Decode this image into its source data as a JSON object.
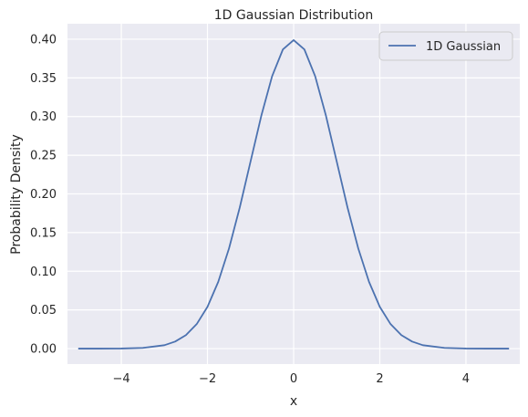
{
  "chart_data": {
    "type": "line",
    "title": "1D Gaussian Distribution",
    "xlabel": "x",
    "ylabel": "Probability Density",
    "xlim": [
      -5.25,
      5.25
    ],
    "ylim": [
      -0.02,
      0.42
    ],
    "xticks": [
      -4,
      -2,
      0,
      2,
      4
    ],
    "xtick_labels": [
      "−4",
      "−2",
      "0",
      "2",
      "4"
    ],
    "yticks": [
      0.0,
      0.05,
      0.1,
      0.15,
      0.2,
      0.25,
      0.3,
      0.35,
      0.4
    ],
    "ytick_labels": [
      "0.00",
      "0.05",
      "0.10",
      "0.15",
      "0.20",
      "0.25",
      "0.30",
      "0.35",
      "0.40"
    ],
    "grid": true,
    "legend_position": "top-right",
    "colors": {
      "plot_bg": "#EAEAF2",
      "line": "#4C72B0",
      "grid": "#FFFFFF"
    },
    "series": [
      {
        "name": "1D Gaussian",
        "x": [
          -5.0,
          -4.5,
          -4.0,
          -3.5,
          -3.0,
          -2.75,
          -2.5,
          -2.25,
          -2.0,
          -1.75,
          -1.5,
          -1.25,
          -1.0,
          -0.75,
          -0.5,
          -0.25,
          0.0,
          0.25,
          0.5,
          0.75,
          1.0,
          1.25,
          1.5,
          1.75,
          2.0,
          2.25,
          2.5,
          2.75,
          3.0,
          3.5,
          4.0,
          4.5,
          5.0
        ],
        "y": [
          0.0,
          0.0,
          0.0001,
          0.0009,
          0.0044,
          0.0091,
          0.0175,
          0.0317,
          0.054,
          0.0863,
          0.1295,
          0.1826,
          0.242,
          0.3011,
          0.3521,
          0.3867,
          0.3989,
          0.3867,
          0.3521,
          0.3011,
          0.242,
          0.1826,
          0.1295,
          0.0863,
          0.054,
          0.0317,
          0.0175,
          0.0091,
          0.0044,
          0.0009,
          0.0001,
          0.0,
          0.0
        ]
      }
    ]
  }
}
